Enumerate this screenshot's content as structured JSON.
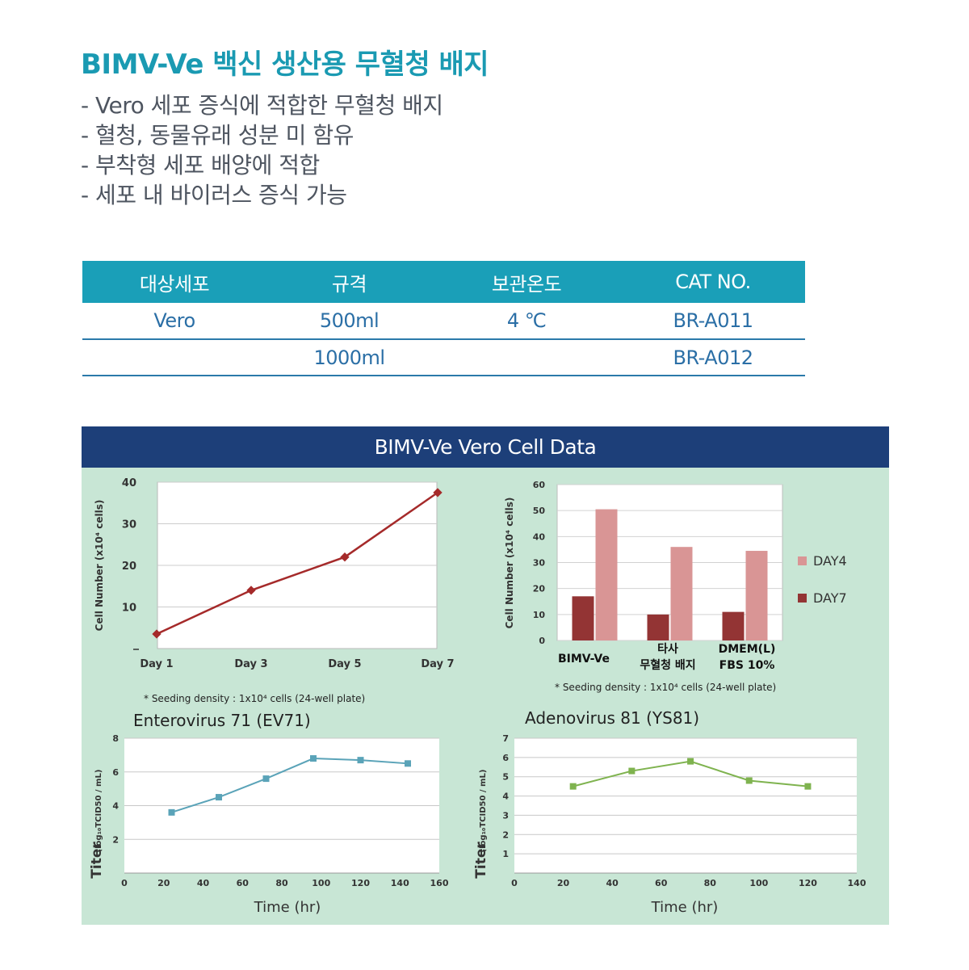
{
  "title": "BIMV-Ve 백신 생산용 무혈청 배지",
  "bullets": [
    "- Vero 세포 증식에 적합한 무혈청 배지",
    "- 혈청, 동물유래 성분 미 함유",
    "- 부착형 세포 배양에 적합",
    "- 세포 내 바이러스 증식 가능"
  ],
  "table": {
    "headers": [
      "대상세포",
      "규격",
      "보관온도",
      "CAT NO."
    ],
    "rows": [
      [
        "Vero",
        "500ml",
        "4 ℃",
        "BR-A011"
      ],
      [
        "",
        "1000ml",
        "",
        "BR-A012"
      ]
    ]
  },
  "panel": {
    "title": "BIMV-Ve Vero Cell Data"
  },
  "colors": {
    "accent": "#1a9ab2",
    "table_header": "#1a9fb8",
    "panel_header": "#1d3f79",
    "panel_bg": "#c8e6d5",
    "growth_line": "#a52a2a",
    "day4": "#d99595",
    "day7": "#933434",
    "ev71_line": "#5aa3b8",
    "ys81_line": "#7fb34f"
  },
  "chart_data": [
    {
      "id": "growth",
      "type": "line",
      "title": "",
      "xlabel": "",
      "ylabel": "Cell  Number (x10⁴ cells)",
      "categories": [
        "Day 1",
        "Day 3",
        "Day 5",
        "Day 7"
      ],
      "yticks": [
        "",
        "10",
        "20",
        "30",
        "40"
      ],
      "ylim": [
        0,
        40
      ],
      "grid": true,
      "values": [
        3.5,
        14,
        22,
        37.5
      ],
      "note": "* Seeding density : 1x10⁴ cells (24-well plate)"
    },
    {
      "id": "bar",
      "type": "bar",
      "title": "",
      "xlabel": "",
      "ylabel": "Cell  Number (x10⁴ cells)",
      "categories": [
        [
          "BIMV-Ve"
        ],
        [
          "타사",
          "무혈청 배지"
        ],
        [
          "DMEM(L)",
          "FBS 10%"
        ]
      ],
      "yticks": [
        "0",
        "10",
        "20",
        "30",
        "40",
        "50",
        "60"
      ],
      "ylim": [
        0,
        60
      ],
      "grid": true,
      "legend_position": "right",
      "series": [
        {
          "name": "DAY4",
          "values": [
            50.5,
            36,
            34.5
          ]
        },
        {
          "name": "DAY7",
          "values": [
            17,
            10,
            11
          ]
        }
      ],
      "note": "* Seeding density : 1x10⁴ cells (24-well plate)"
    },
    {
      "id": "ev71",
      "type": "line",
      "title": "Enterovirus 71 (EV71)",
      "xlabel": "Time (hr)",
      "ylabel": "Titer",
      "ylabel_sub": "(log₁₀TCID50 / mL)",
      "xticks": [
        "0",
        "20",
        "40",
        "60",
        "80",
        "100",
        "120",
        "140",
        "160"
      ],
      "yticks": [
        "2",
        "4",
        "6",
        "8"
      ],
      "xlim": [
        0,
        160
      ],
      "ylim": [
        0,
        8
      ],
      "grid": true,
      "x": [
        24,
        48,
        72,
        96,
        120,
        144
      ],
      "values": [
        3.6,
        4.5,
        5.6,
        6.8,
        6.7,
        6.5
      ]
    },
    {
      "id": "ys81",
      "type": "line",
      "title": "Adenovirus 81 (YS81)",
      "xlabel": "Time (hr)",
      "ylabel": "Titer",
      "ylabel_sub": "(log₁₀TCID50 / mL)",
      "xticks": [
        "0",
        "20",
        "40",
        "60",
        "80",
        "100",
        "120",
        "140"
      ],
      "yticks": [
        "1",
        "2",
        "3",
        "4",
        "5",
        "6",
        "7"
      ],
      "xlim": [
        0,
        140
      ],
      "ylim": [
        0,
        7
      ],
      "grid": true,
      "x": [
        24,
        48,
        72,
        96,
        120
      ],
      "values": [
        4.5,
        5.3,
        5.8,
        4.8,
        4.5
      ]
    }
  ]
}
